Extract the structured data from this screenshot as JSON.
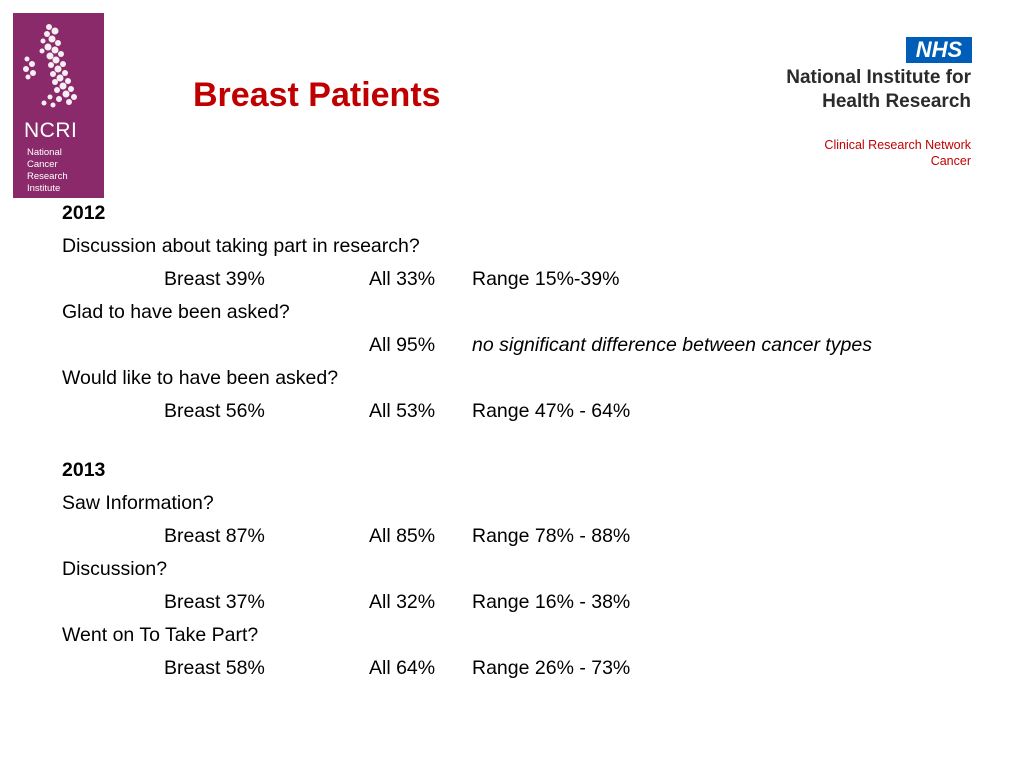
{
  "ncri_logo": {
    "abbr": "NCRI",
    "name_lines": [
      "National",
      "Cancer",
      "Research",
      "Institute"
    ]
  },
  "title": "Breast Patients",
  "nhs_logo": {
    "badge": "NHS",
    "org_lines": [
      "National Institute for",
      "Health Research"
    ],
    "sub_lines": [
      "Clinical Research Network",
      "Cancer"
    ]
  },
  "sections": [
    {
      "year": "2012",
      "items": [
        {
          "question": "Discussion about taking part in research?",
          "breast": "Breast 39%",
          "all": "All 33%",
          "range": "Range 15%-39%"
        },
        {
          "question": "Glad to have been asked?",
          "breast": "",
          "all": "All 95%",
          "note": "no significant difference between cancer types"
        },
        {
          "question": "Would like to have been asked?",
          "breast": "Breast 56%",
          "all": "All 53%",
          "range": "Range 47% - 64%"
        }
      ]
    },
    {
      "year": "2013",
      "items": [
        {
          "question": "Saw Information?",
          "breast": "Breast 87%",
          "all": "All 85%",
          "range": "Range 78% - 88%"
        },
        {
          "question": "Discussion?",
          "breast": "Breast 37%",
          "all": "All 32%",
          "range": "Range 16% - 38%"
        },
        {
          "question": "Went on To Take Part?",
          "breast": "Breast 58%",
          "all": "All 64%",
          "range": "Range 26% - 73%"
        }
      ]
    }
  ]
}
